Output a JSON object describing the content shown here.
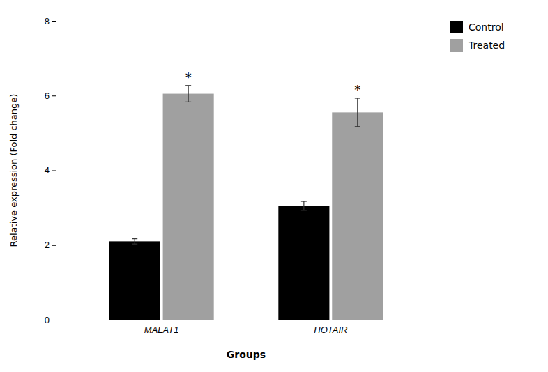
{
  "chart_data": {
    "type": "bar",
    "xlabel": "Groups",
    "ylabel": "Relative expression (Fold change)",
    "categories": [
      "MALAT1",
      "HOTAIR"
    ],
    "series": [
      {
        "name": "Control",
        "color": "#000000",
        "values": [
          2.1,
          3.05
        ],
        "errors": [
          0.07,
          0.12
        ]
      },
      {
        "name": "Treated",
        "color": "#a0a0a0",
        "values": [
          6.05,
          5.55
        ],
        "errors": [
          0.22,
          0.38
        ],
        "annotations": [
          "*",
          "*"
        ]
      }
    ],
    "ylim": [
      0,
      8
    ],
    "yticks": [
      0,
      2,
      4,
      6,
      8
    ],
    "grid": false,
    "legend": "right"
  }
}
